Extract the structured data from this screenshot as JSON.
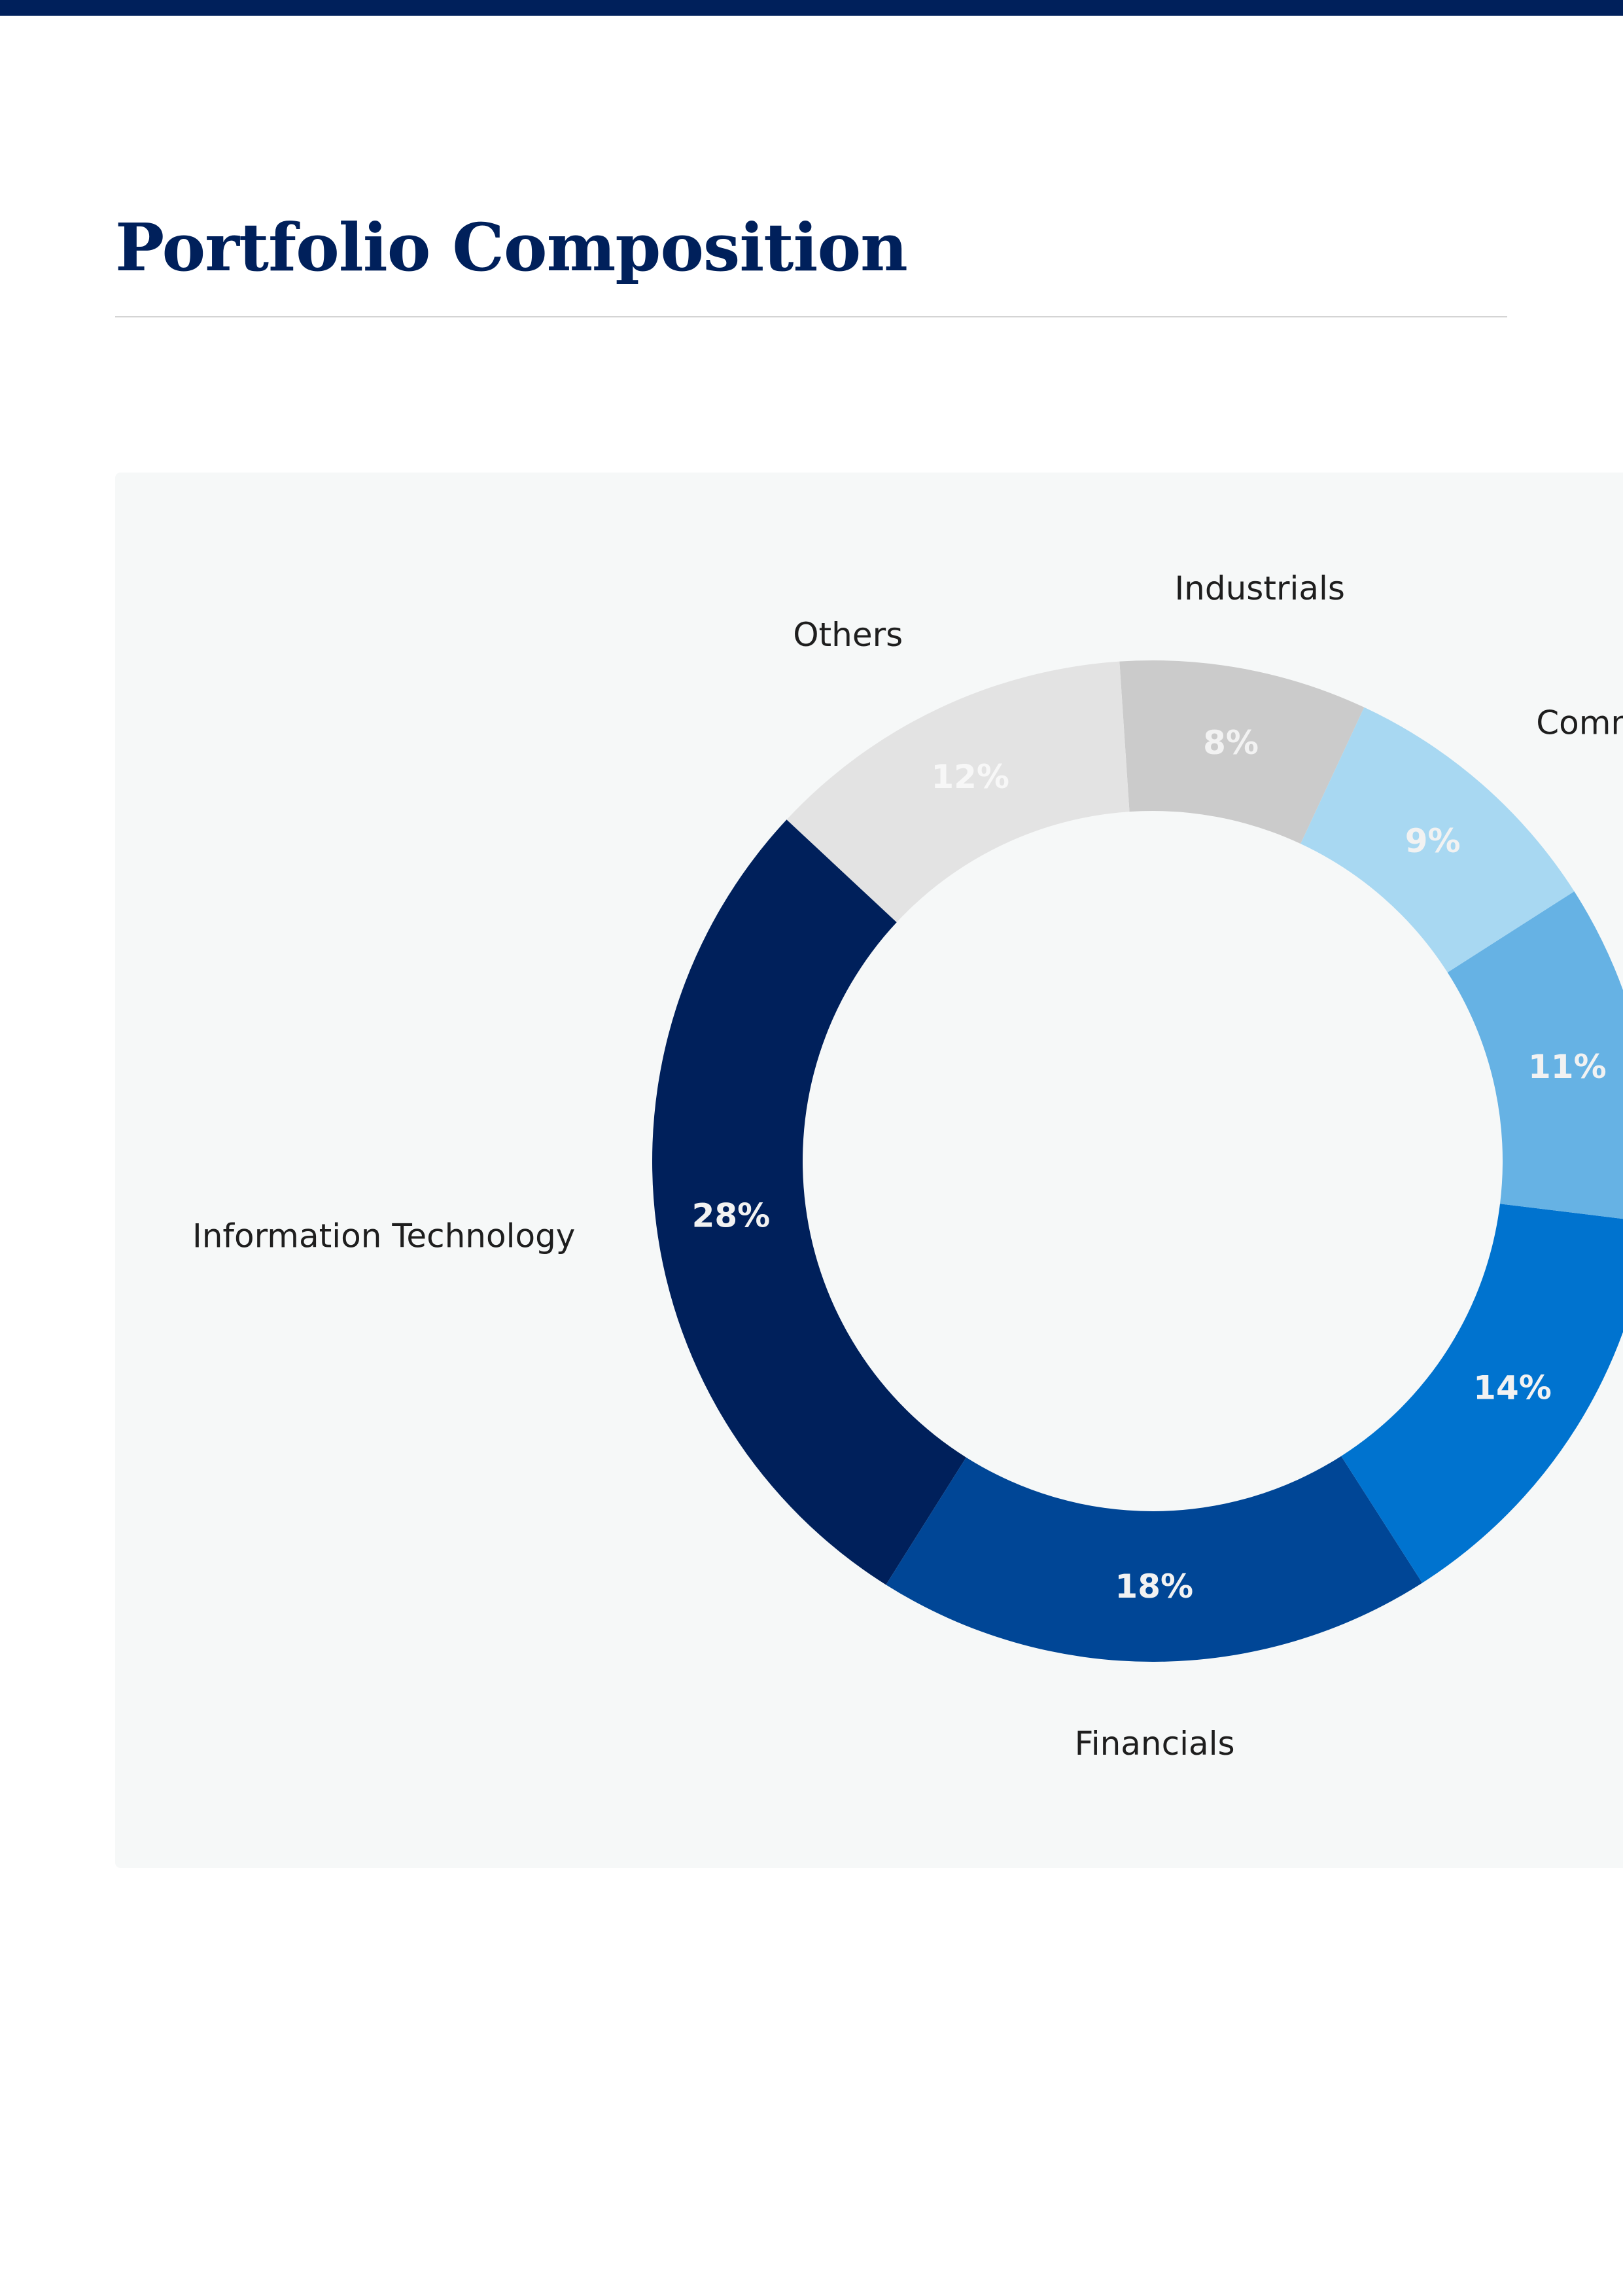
{
  "page": {
    "title": "Portfolio Composition"
  },
  "colors": {
    "brand_navy": "#00205b",
    "rule": "#d4d4d4",
    "panel_bg": "#f6f8f8"
  },
  "chart_data": {
    "type": "pie",
    "style": "donut",
    "title": "",
    "start": "Information Technology segment begins near the upper-left, segments proceed counter-clockwise",
    "categories": [
      "Information Technology",
      "Financials",
      "",
      "",
      "Comm.",
      "Industrials",
      "Others"
    ],
    "values": [
      28,
      18,
      14,
      11,
      9,
      8,
      12
    ],
    "value_labels": [
      "28%",
      "18%",
      "14%",
      "11%",
      "9%",
      "8%",
      "12%"
    ],
    "colors": [
      "#00205b",
      "#004696",
      "#0073cf",
      "#66b2e4",
      "#a8d8f2",
      "#cbcbcb",
      "#e3e3e3"
    ],
    "value_label_colors": [
      "#f2f2f2",
      "#f2f2f2",
      "#f2f2f2",
      "#f2f2f2",
      "#f2f2f2",
      "#f2f2f2",
      "#f7f7f7"
    ],
    "legend": "none"
  }
}
